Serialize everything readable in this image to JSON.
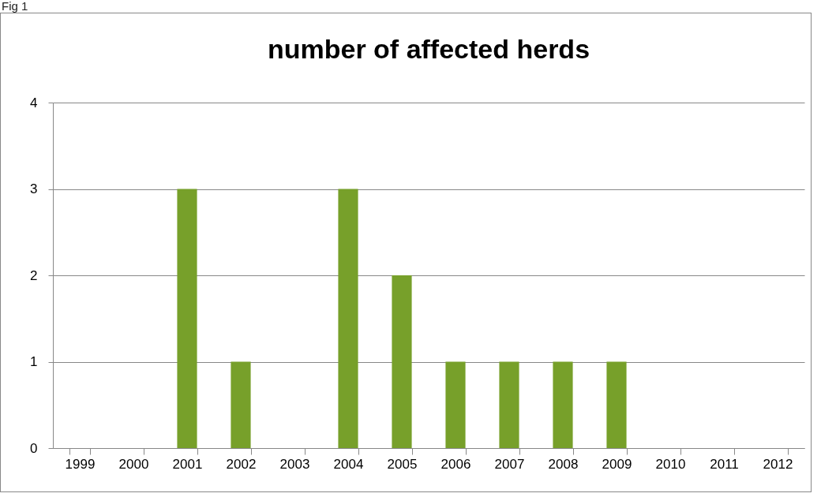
{
  "chart_data": {
    "type": "bar",
    "title": "number of affected herds",
    "categories": [
      "1999",
      "2000",
      "2001",
      "2002",
      "2003",
      "2004",
      "2005",
      "2006",
      "2007",
      "2008",
      "2009",
      "2010",
      "2011",
      "2012"
    ],
    "values": [
      0,
      0,
      3,
      1,
      0,
      3,
      2,
      1,
      1,
      1,
      1,
      0,
      0,
      0
    ],
    "color": "#77a02a",
    "ylim": [
      0,
      4
    ],
    "yticks": [
      0,
      1,
      2,
      3,
      4
    ],
    "grid": "y",
    "annotations": [
      "Fig 1"
    ]
  }
}
